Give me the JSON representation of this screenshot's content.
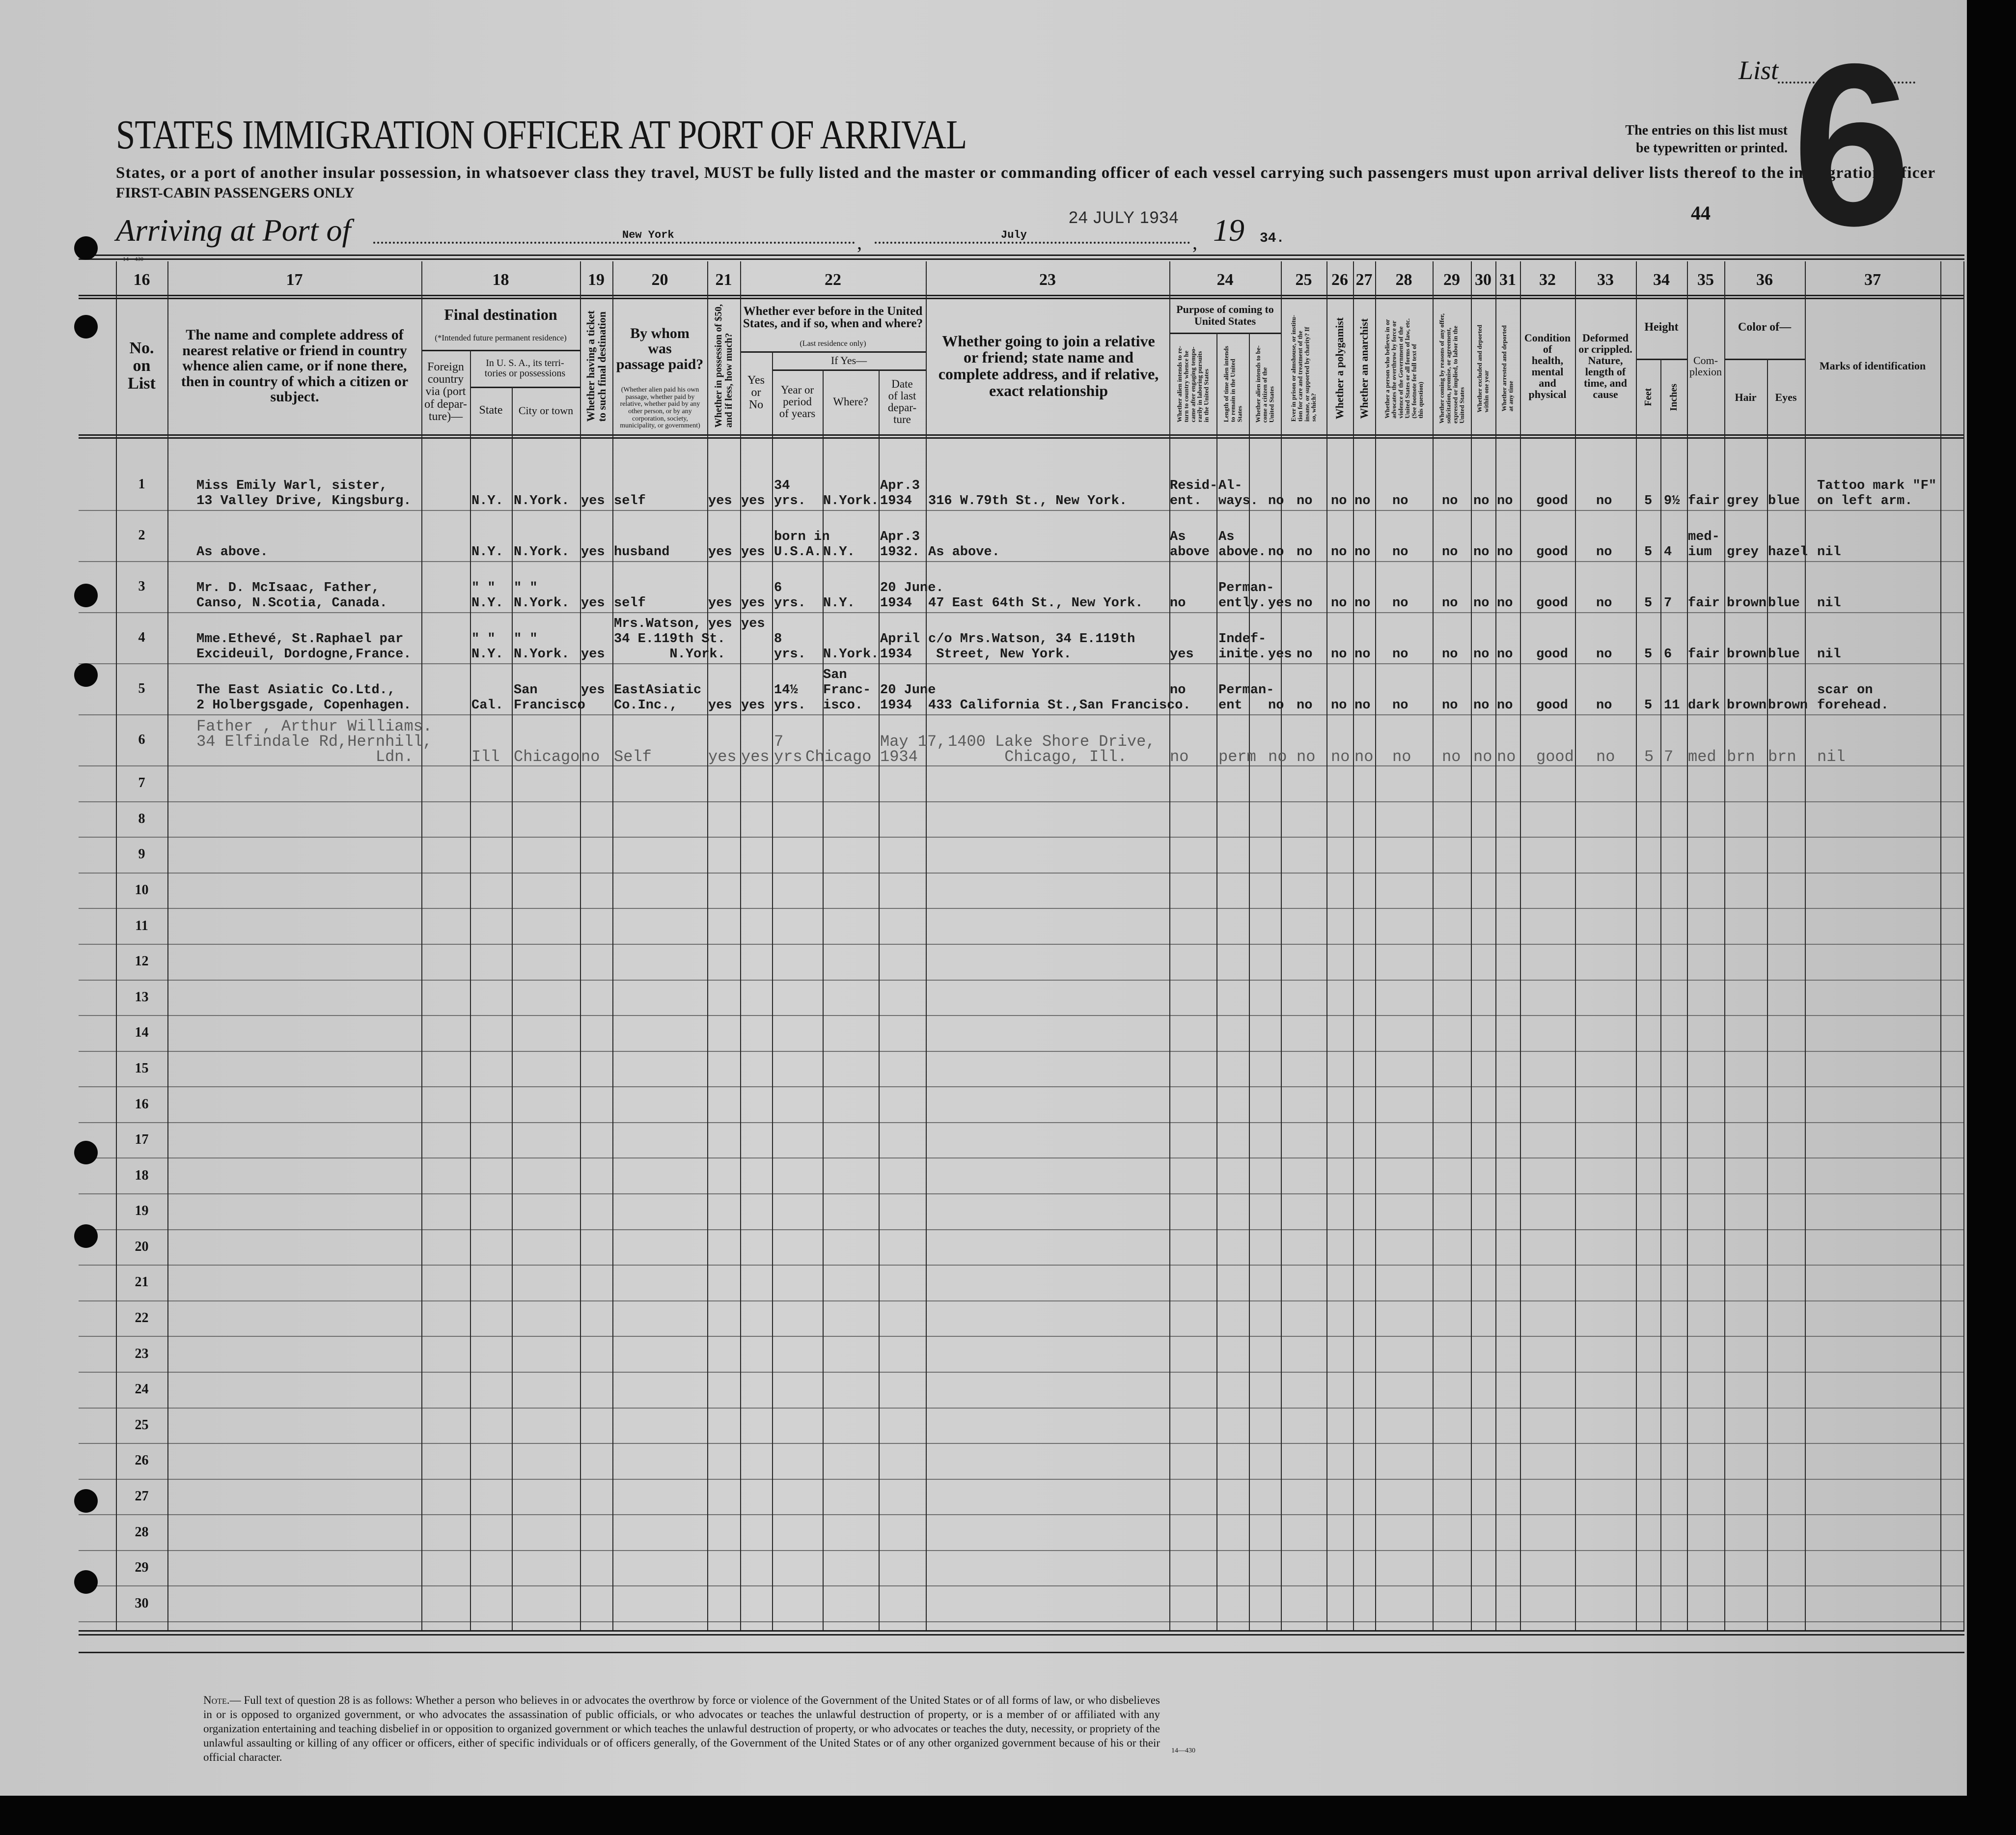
{
  "header": {
    "title": "STATES IMMIGRATION OFFICER AT PORT OF ARRIVAL",
    "subtitle": "States, or a port of another insular possession, in whatsoever class they travel, MUST be fully listed and the master or commanding officer of each vessel carrying such passengers must upon arrival deliver lists thereof to the immigration officer",
    "first_cabin": "FIRST-CABIN PASSENGERS ONLY",
    "arriving_label": "Arriving at Port of",
    "port": "New York",
    "month": "July",
    "year_prefix": "19",
    "year_suffix": "34.",
    "date_stamp": "24 JULY 1934",
    "list_label": "List",
    "list_number": "6",
    "entries_note_1": "The entries on this list must",
    "entries_note_2": "be typewritten or printed.",
    "page_number": "44",
    "form_number": "14—430"
  },
  "column_numbers": [
    "16",
    "17",
    "18",
    "19",
    "20",
    "21",
    "22",
    "23",
    "24",
    "25",
    "26",
    "27",
    "28",
    "29",
    "30",
    "31",
    "32",
    "33",
    "34",
    "35",
    "36",
    "37"
  ],
  "column_headers": {
    "no_on_list": "No.\non\nList",
    "relative": "The name and complete address of nearest relative or friend in country whence alien came, or if none there, then in country of which a citizen or subject.",
    "final_destination": "Final destination",
    "final_destination_note": "(*Intended future permanent residence)",
    "foreign_country": "Foreign\ncountry\nvia (port\nof depar-\nture)—",
    "in_usa": "In U. S. A., its terri-\ntories or possessions",
    "state": "State",
    "city": "City or town",
    "ticket": "Whether having a ticket\nto such final destination",
    "passage_paid": "By whom\nwas\npassage paid?",
    "passage_paid_note": "(Whether alien paid his own passage, whether paid by relative, whether paid by any other person, or by any corporation, society, municipality, or government)",
    "money": "Whether in possession of $50,\nand if less, how much?",
    "before_in_us": "Whether ever before in the United States, and if so, when and where?",
    "before_in_us_note": "(Last residence only)",
    "yes_or_no": "Yes\nor\nNo",
    "if_yes": "If Yes—",
    "years": "Year or\nperiod\nof years",
    "where": "Where?",
    "date_last_departure": "Date\nof last\ndepar-\nture",
    "join_relative": "Whether going to join a relative or friend; state name and complete address, and if relative, exact relationship",
    "purpose": "Purpose of coming to\nUnited States",
    "purpose_return": "Whether alien intends to re-\nturn to country whence he\ncame after engaging tempo-\nrarily in laboring pursuits\nin the United States",
    "purpose_length": "Length of time alien intends\nto remain in the United\nStates",
    "purpose_citizen": "Whether alien intends to be-\ncome a citizen of the\nUnited States",
    "prison": "Ever in prison or almshouse, or institu-\ntion for care and treatment of the\ninsane, or supported by charity? If\nso, which?",
    "polygamist": "Whether a polygamist",
    "anarchist": "Whether an anarchist",
    "overthrow": "Whether a person who believes in or\nadvocates the overthrow by force or\nviolence of the Government of the\nUnited States or all forms of law, etc.\n(See footnote for full text of\nthis question)",
    "contract_labor": "Whether coming by reasons of any offer,\nsolicitation, promise, or agreement,\nexpressed or implied, to labor in the\nUnited States",
    "excluded": "Whether excluded and deported\nwithin one year",
    "arrested": "Whether arrested and deported\nat any time",
    "health": "Condition\nof\nhealth,\nmental\nand\nphysical",
    "deformed": "Deformed\nor crippled.\nNature,\nlength of\ntime, and\ncause",
    "height": "Height",
    "feet": "Feet",
    "inches": "Inches",
    "complexion": "Com-\nplexion",
    "color_of": "Color of—",
    "hair": "Hair",
    "eyes": "Eyes",
    "marks": "Marks of identification"
  },
  "rows": [
    {
      "no": "1",
      "relative": "Miss Emily Warl, sister,\n13 Valley Drive, Kingsburg.",
      "state": "N.Y.",
      "city": "N.York.",
      "ticket": "yes",
      "paid": "self",
      "money": "yes",
      "before": "yes",
      "years": "34\nyrs.",
      "where": "N.York.",
      "date": "Apr.3\n1934",
      "join": "316 W.79th St., New York.",
      "purpose": "Resid-\nent.",
      "length": "Al-\nways.",
      "citizen": "no",
      "q25": "no",
      "q26": "no",
      "q27": "no",
      "q28": "no",
      "q29": "no",
      "q30": "no",
      "q31": "no",
      "health": "good",
      "deformed": "no",
      "feet": "5",
      "inches": "9½",
      "complexion": "fair",
      "hair": "grey",
      "eyes": "blue",
      "marks": "Tattoo mark \"F\"\non left arm."
    },
    {
      "no": "2",
      "relative": "As above.",
      "state": "N.Y.",
      "city": "N.York.",
      "ticket": "yes",
      "paid": "husband",
      "money": "yes",
      "before": "yes",
      "years": "born in\nU.S.A.",
      "where": "N.Y.",
      "date": "Apr.3\n1932.",
      "join": "As above.",
      "purpose": "As\nabove",
      "length": "As\nabove.",
      "citizen": "no",
      "q25": "no",
      "q26": "no",
      "q27": "no",
      "q28": "no",
      "q29": "no",
      "q30": "no",
      "q31": "no",
      "health": "good",
      "deformed": "no",
      "feet": "5",
      "inches": "4",
      "complexion": "med-\nium",
      "hair": "grey",
      "eyes": "hazel",
      "marks": "nil"
    },
    {
      "no": "3",
      "relative": "Mr. D. McIsaac, Father,\nCanso, N.Scotia, Canada.",
      "state": "\" \"\nN.Y.",
      "city": "\" \"\nN.York.",
      "ticket": "yes",
      "paid": "self",
      "money": "yes",
      "before": "yes",
      "years": "6\nyrs.",
      "where": "N.Y.",
      "date": "20 June.\n1934",
      "join": "47 East 64th St., New York.",
      "purpose": "no",
      "length": "Perman-\nently.",
      "citizen": "yes",
      "q25": "no",
      "q26": "no",
      "q27": "no",
      "q28": "no",
      "q29": "no",
      "q30": "no",
      "q31": "no",
      "health": "good",
      "deformed": "no",
      "feet": "5",
      "inches": "7",
      "complexion": "fair",
      "hair": "brown",
      "eyes": "blue",
      "marks": "nil"
    },
    {
      "no": "4",
      "relative": "Mme.Ethevé, St.Raphael par\nExcideuil, Dordogne,France.",
      "state": "\" \"\nN.Y.",
      "city": "\" \"\nN.York.",
      "ticket": "yes",
      "paid": "Mrs.Watson,\n34 E.119th St.\n       N.York.",
      "money": "yes\n",
      "before": "yes\n",
      "years": "8\nyrs.",
      "where": "N.York.",
      "date": "April\n1934",
      "join": "c/o Mrs.Watson, 34 E.119th\n Street, New York.",
      "purpose": "yes",
      "length": "Indef-\ninite.",
      "citizen": "yes",
      "q25": "no",
      "q26": "no",
      "q27": "no",
      "q28": "no",
      "q29": "no",
      "q30": "no",
      "q31": "no",
      "health": "good",
      "deformed": "no",
      "feet": "5",
      "inches": "6",
      "complexion": "fair",
      "hair": "brown",
      "eyes": "blue",
      "marks": "nil"
    },
    {
      "no": "5",
      "relative": "The East Asiatic Co.Ltd.,\n2 Holbergsgade, Copenhagen.",
      "state": "Cal.",
      "city": "San\nFrancisco",
      "ticket": "yes\n",
      "paid": "EastAsiatic\nCo.Inc.,",
      "money": "yes",
      "before": "yes",
      "years": "14½\nyrs.",
      "where": "San\nFranc-\nisco.",
      "date": "20 June\n1934",
      "join": "433 California St.,San Francisco.",
      "purpose": "no\n",
      "length": "Perman-\nent",
      "citizen": "no",
      "q25": "no",
      "q26": "no",
      "q27": "no",
      "q28": "no",
      "q29": "no",
      "q30": "no",
      "q31": "no",
      "health": "good",
      "deformed": "no",
      "feet": "5",
      "inches": "11",
      "complexion": "dark",
      "hair": "brown",
      "eyes": "brown",
      "marks": "scar on\nforehead."
    },
    {
      "no": "6",
      "relative": "Father , Arthur Williams.\n34 Elfindale Rd,Hernhill,\n                   Ldn.",
      "state": "Ill",
      "city": "Chicago",
      "ticket": "no",
      "paid": "Self",
      "money": "yes",
      "before": "yes",
      "years": "7\nyrs",
      "where": "Chicago",
      "date": "May 17,\n1934",
      "join": "1400 Lake Shore Drive,\n      Chicago, Ill.",
      "purpose": "no",
      "length": "perm",
      "citizen": "no",
      "q25": "no",
      "q26": "no",
      "q27": "no",
      "q28": "no",
      "q29": "no",
      "q30": "no",
      "q31": "no",
      "health": "good",
      "deformed": "no",
      "feet": "5",
      "inches": "7",
      "complexion": "med",
      "hair": "brn",
      "eyes": "brn",
      "marks": "nil"
    },
    {
      "no": "7"
    },
    {
      "no": "8"
    },
    {
      "no": "9"
    },
    {
      "no": "10"
    },
    {
      "no": "11"
    },
    {
      "no": "12"
    },
    {
      "no": "13"
    },
    {
      "no": "14"
    },
    {
      "no": "15"
    },
    {
      "no": "16"
    },
    {
      "no": "17"
    },
    {
      "no": "18"
    },
    {
      "no": "19"
    },
    {
      "no": "20"
    },
    {
      "no": "21"
    },
    {
      "no": "22"
    },
    {
      "no": "23"
    },
    {
      "no": "24"
    },
    {
      "no": "25"
    },
    {
      "no": "26"
    },
    {
      "no": "27"
    },
    {
      "no": "28"
    },
    {
      "no": "29"
    },
    {
      "no": "30"
    }
  ],
  "footnote": {
    "label": "Note.—",
    "text": "Full text of question 28 is as follows: Whether a person who believes in or advocates the overthrow by force or violence of the Government of the United States or of all forms of law, or who disbelieves in or is opposed to organized government, or who advocates the assassination of public officials, or who advocates or teaches the unlawful destruction of property, or is a member of or affiliated with any organization entertaining and teaching disbelief in or opposition to organized government or which teaches the unlawful destruction of property, or who advocates or teaches the duty, necessity, or propriety of the unlawful assaulting or killing of any officer or officers, either of specific individuals or of officers generally, of the Government of the United States or of any other organized government because of his or their official character.",
    "form_number": "14—430"
  },
  "colors": {
    "paper": "#cbcbcb",
    "ink": "#141414",
    "background": "#050505"
  }
}
